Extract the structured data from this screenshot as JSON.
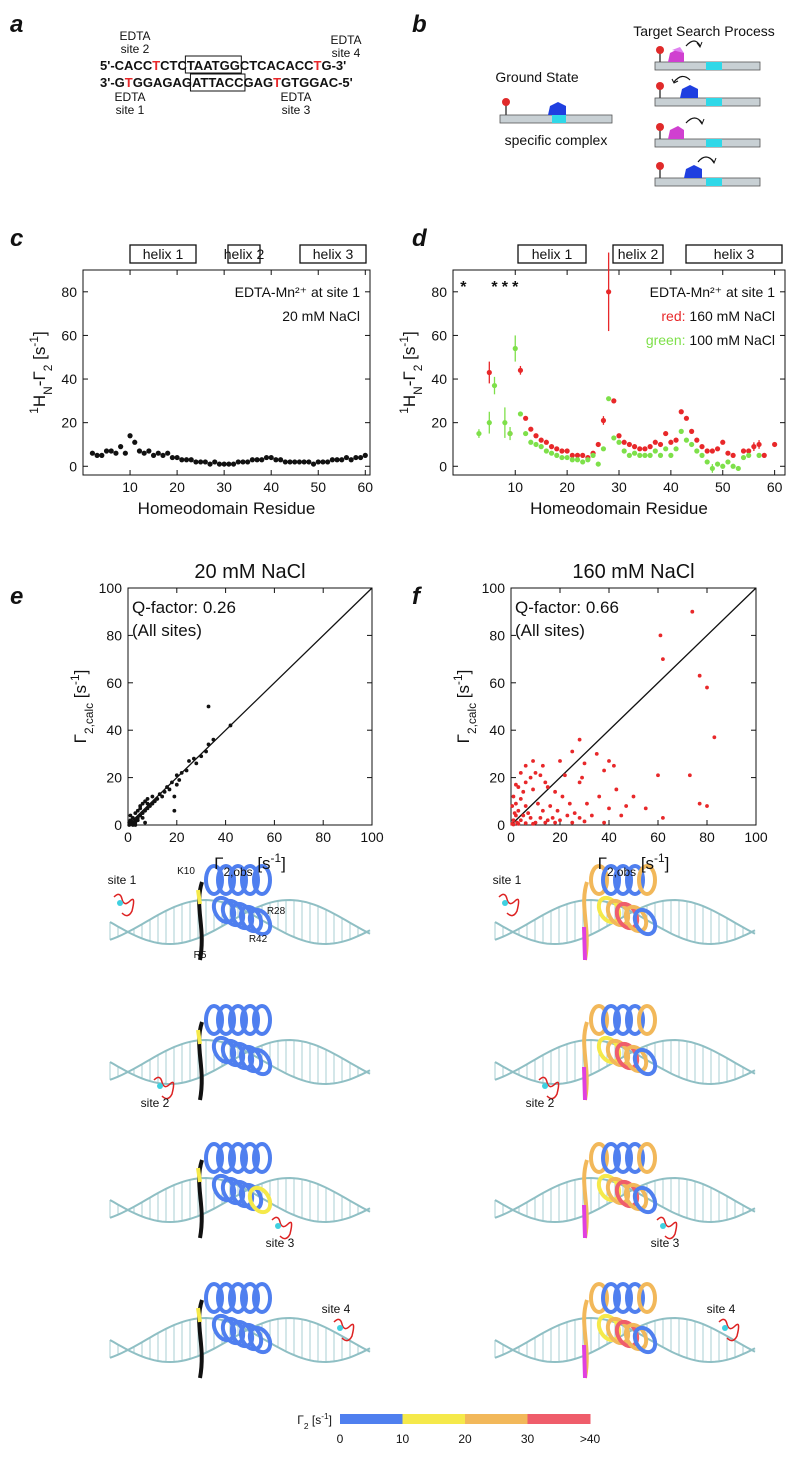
{
  "panel_labels": [
    "a",
    "b",
    "c",
    "d",
    "e",
    "f"
  ],
  "panel_a": {
    "site_2": [
      "EDTA",
      "site 2"
    ],
    "site_4": [
      "EDTA",
      "site 4"
    ],
    "site_1": [
      "EDTA",
      "site 1"
    ],
    "site_3": [
      "EDTA",
      "site 3"
    ],
    "top_strand": [
      "5'-CACC",
      "T",
      "CTC",
      "TAATGG",
      "CTCACACC",
      "T",
      "G-3'"
    ],
    "bottom_strand": [
      "3'-G",
      "T",
      "GGAGAG",
      "ATTACC",
      "GAG",
      "T",
      "GTGGAC-5'"
    ],
    "highlight_segments": [
      1,
      5
    ],
    "highlight_color": "#e8282a",
    "boxed_segment": 3
  },
  "panel_b": {
    "ground_state": "Ground State",
    "specific_complex": "specific complex",
    "target_search": "Target Search Process"
  },
  "chart_data": [
    {
      "type": "scatter",
      "helix_labels": [
        "helix 1",
        "helix 2",
        "helix 3"
      ],
      "annotations": [
        "EDTA-Mn²⁺ at site 1",
        "20 mM NaCl"
      ],
      "xlabel": [
        "Homeodomain Residue"
      ],
      "xlabel_format": [
        "normal"
      ],
      "ylabel": [
        "1",
        "H",
        "N",
        "-Γ",
        "2",
        " [s",
        "-1",
        "]"
      ],
      "ylabel_format": [
        "sup",
        "normal",
        "sub",
        "normal",
        "sub",
        "normal",
        "sup",
        "normal"
      ],
      "xlim": [
        0,
        61
      ],
      "ylim": [
        -4,
        90
      ],
      "xticks": [
        10,
        20,
        30,
        40,
        50,
        60
      ],
      "yticks": [
        0,
        20,
        40,
        60,
        80
      ],
      "series": [
        {
          "color": "#111111",
          "x": [
            2,
            3,
            4,
            5,
            6,
            7,
            8,
            9,
            10,
            11,
            12,
            13,
            14,
            15,
            16,
            17,
            18,
            19,
            20,
            21,
            22,
            23,
            24,
            25,
            26,
            27,
            28,
            29,
            30,
            31,
            32,
            33,
            34,
            35,
            36,
            37,
            38,
            39,
            40,
            41,
            42,
            43,
            44,
            45,
            46,
            47,
            48,
            49,
            50,
            51,
            52,
            53,
            54,
            55,
            56,
            57,
            58,
            59,
            60
          ],
          "values": [
            6,
            5,
            5,
            7,
            7,
            6,
            9,
            6,
            14,
            11,
            7,
            6,
            7,
            5,
            6,
            5,
            6,
            4,
            4,
            3,
            3,
            3,
            2,
            2,
            2,
            1,
            2,
            1,
            1,
            1,
            1,
            2,
            2,
            2,
            3,
            3,
            3,
            4,
            4,
            3,
            3,
            2,
            2,
            2,
            2,
            2,
            2,
            1,
            2,
            2,
            2,
            3,
            3,
            3,
            4,
            3,
            4,
            4,
            5
          ]
        }
      ]
    },
    {
      "type": "scatter",
      "helix_labels": [
        "helix 1",
        "helix 2",
        "helix 3"
      ],
      "annotations": [
        "EDTA-Mn²⁺ at site 1"
      ],
      "xlabel": [
        "Homeodomain Residue"
      ],
      "xlabel_format": [
        "normal"
      ],
      "ylabel": [
        "1",
        "H",
        "N",
        "-Γ",
        "2",
        " [s",
        "-1",
        "]"
      ],
      "ylabel_format": [
        "sup",
        "normal",
        "sub",
        "normal",
        "sub",
        "normal",
        "sup",
        "normal"
      ],
      "xlim": [
        -2,
        62
      ],
      "ylim": [
        -4,
        90
      ],
      "xticks": [
        10,
        20,
        30,
        40,
        50,
        60
      ],
      "yticks": [
        0,
        20,
        40,
        60,
        80
      ],
      "offscale": {
        "marker": "*",
        "color": "#e8282a",
        "x": [
          0,
          6,
          8,
          10
        ]
      },
      "series": [
        {
          "name": "160 mM NaCl",
          "legend_key": "red:",
          "color": "#e8282a",
          "x": [
            5,
            9,
            11,
            12,
            13,
            14,
            15,
            16,
            17,
            18,
            19,
            20,
            21,
            22,
            23,
            24,
            25,
            26,
            27,
            28,
            29,
            30,
            31,
            32,
            33,
            34,
            35,
            36,
            37,
            38,
            39,
            40,
            41,
            42,
            43,
            44,
            45,
            46,
            47,
            48,
            49,
            50,
            51,
            52,
            54,
            55,
            56,
            57,
            58,
            60
          ],
          "values": [
            43,
            15,
            44,
            22,
            17,
            14,
            12,
            11,
            9,
            8,
            7,
            7,
            5,
            5,
            5,
            4,
            6,
            10,
            21,
            80,
            30,
            14,
            11,
            10,
            9,
            8,
            8,
            9,
            11,
            10,
            15,
            11,
            12,
            25,
            22,
            16,
            12,
            9,
            7,
            7,
            8,
            11,
            6,
            5,
            7,
            7,
            9,
            10,
            5,
            10
          ],
          "errors": [
            5,
            1,
            2,
            1,
            1,
            1,
            1,
            1,
            1,
            1,
            1,
            1,
            1,
            1,
            1,
            1,
            1,
            1,
            2,
            18,
            1,
            1,
            1,
            1,
            1,
            1,
            1,
            1,
            1,
            1,
            1,
            1,
            1,
            1,
            1,
            1,
            1,
            1,
            1,
            1,
            1,
            1,
            1,
            1,
            1,
            1,
            2,
            2,
            1,
            1
          ]
        },
        {
          "name": "100 mM NaCl",
          "legend_key": "green:",
          "color": "#7ee04a",
          "x": [
            3,
            5,
            6,
            8,
            9,
            10,
            11,
            12,
            13,
            14,
            15,
            16,
            17,
            18,
            19,
            20,
            21,
            22,
            23,
            24,
            25,
            26,
            27,
            28,
            29,
            30,
            31,
            32,
            33,
            34,
            35,
            36,
            37,
            38,
            39,
            40,
            41,
            42,
            43,
            44,
            45,
            46,
            47,
            48,
            49,
            50,
            51,
            52,
            53,
            54,
            55,
            57
          ],
          "values": [
            15,
            20,
            37,
            20,
            15,
            54,
            24,
            15,
            11,
            10,
            9,
            7,
            6,
            5,
            4,
            4,
            3,
            3,
            2,
            3,
            5,
            1,
            8,
            31,
            13,
            11,
            7,
            5,
            6,
            5,
            5,
            5,
            7,
            5,
            8,
            5,
            8,
            16,
            12,
            10,
            7,
            5,
            2,
            -1,
            1,
            0,
            2,
            0,
            -1,
            4,
            5,
            5
          ],
          "errors": [
            2,
            5,
            4,
            7,
            3,
            6,
            1,
            1,
            1,
            1,
            1,
            1,
            1,
            1,
            1,
            1,
            1,
            1,
            1,
            1,
            1,
            1,
            1,
            1,
            1,
            1,
            1,
            1,
            1,
            1,
            1,
            1,
            1,
            1,
            1,
            1,
            1,
            1,
            1,
            1,
            1,
            1,
            1,
            2,
            1,
            1,
            1,
            1,
            1,
            1,
            1,
            1
          ]
        }
      ]
    },
    {
      "type": "scatter",
      "title": "20 mM NaCl",
      "annotations": [
        "Q-factor: 0.26",
        "(All sites)"
      ],
      "diagonal": true,
      "xlabel": [
        "Γ",
        "2,obs",
        " [s",
        "-1",
        "]"
      ],
      "xlabel_format": [
        "normal",
        "sub",
        "normal",
        "sup",
        "normal"
      ],
      "ylabel": [
        "Γ",
        "2,calc",
        " [s",
        "-1",
        "]"
      ],
      "ylabel_format": [
        "normal",
        "sub",
        "normal",
        "sup",
        "normal"
      ],
      "xlim": [
        0,
        100
      ],
      "ylim": [
        0,
        100
      ],
      "xticks": [
        0,
        20,
        40,
        60,
        80,
        100
      ],
      "yticks": [
        0,
        20,
        40,
        60,
        80,
        100
      ],
      "series": [
        {
          "color": "#111111",
          "x": [
            0.5,
            1,
            1.5,
            2,
            2,
            3,
            3,
            4,
            4,
            5,
            5,
            6,
            6,
            7,
            7,
            8,
            8,
            9,
            10,
            10,
            11,
            12,
            13,
            14,
            15,
            16,
            17,
            18,
            19,
            20,
            20,
            21,
            22,
            24,
            25,
            27,
            28,
            30,
            32,
            33,
            33,
            35,
            42,
            1,
            2,
            3,
            4,
            5,
            6,
            7,
            8,
            19,
            0.5,
            1,
            2,
            3
          ],
          "values": [
            1,
            2,
            0.5,
            3,
            1,
            2,
            5,
            3,
            6,
            4,
            8,
            5,
            9,
            6,
            10,
            7,
            11,
            8,
            9,
            12,
            10,
            11,
            13,
            12,
            14,
            16,
            15,
            18,
            6,
            17,
            21,
            19,
            22,
            23,
            27,
            28,
            26,
            29,
            31,
            34,
            50,
            36,
            42,
            4,
            0,
            1,
            2,
            7,
            3,
            1,
            9,
            12,
            0,
            0.5,
            0.3,
            0
          ]
        }
      ]
    },
    {
      "type": "scatter",
      "title": "160 mM NaCl",
      "annotations": [
        "Q-factor: 0.66",
        "(All sites)"
      ],
      "diagonal": true,
      "xlabel": [
        "Γ",
        "2,obs",
        " [s",
        "-1",
        "]"
      ],
      "xlabel_format": [
        "normal",
        "sub",
        "normal",
        "sup",
        "normal"
      ],
      "ylabel": [
        "Γ",
        "2,calc",
        " [s",
        "-1",
        "]"
      ],
      "ylabel_format": [
        "normal",
        "sub",
        "normal",
        "sup",
        "normal"
      ],
      "xlim": [
        0,
        100
      ],
      "ylim": [
        0,
        100
      ],
      "xticks": [
        0,
        20,
        40,
        60,
        80,
        100
      ],
      "yticks": [
        0,
        20,
        40,
        60,
        80,
        100
      ],
      "series": [
        {
          "color": "#e8282a",
          "x": [
            74,
            61,
            62,
            77,
            80,
            83,
            60,
            73,
            77,
            80,
            62,
            45,
            47,
            42,
            40,
            35,
            38,
            28,
            25,
            30,
            29,
            28,
            22,
            20,
            21,
            18,
            15,
            14,
            12,
            10,
            8,
            9,
            5,
            4,
            6,
            3,
            2,
            1,
            2,
            7,
            11,
            13,
            16,
            17,
            19,
            24,
            26,
            31,
            33,
            36,
            40,
            43,
            50,
            55,
            6,
            3,
            1,
            0.5,
            1.5,
            2.5,
            4,
            5,
            8,
            10,
            12,
            15,
            20,
            23,
            28,
            0.5,
            1,
            3,
            6,
            9,
            14,
            18,
            25,
            30,
            38,
            6,
            4,
            9,
            13,
            2
          ],
          "values": [
            90,
            80,
            70,
            63,
            58,
            37,
            21,
            21,
            9,
            8,
            3,
            4,
            8,
            25,
            27,
            30,
            23,
            36,
            31,
            26,
            20,
            18,
            21,
            27,
            12,
            14,
            16,
            18,
            21,
            22,
            20,
            15,
            14,
            11,
            8,
            6,
            4,
            2,
            9,
            5,
            9,
            6,
            8,
            3,
            6,
            9,
            5,
            9,
            4,
            12,
            7,
            15,
            12,
            7,
            18,
            16,
            12,
            8,
            5,
            1,
            2,
            4,
            3,
            1,
            3,
            2,
            2,
            4,
            3,
            0.5,
            0.2,
            0.5,
            0.8,
            0.5,
            1,
            1,
            1,
            1.5,
            1,
            25,
            22,
            27,
            25,
            17
          ]
        }
      ]
    }
  ],
  "structures": {
    "residue_labels": [
      "K10",
      "R28",
      "R5",
      "R42"
    ],
    "sites_left": [
      "site 1",
      "site 2",
      "site 3",
      "site 4"
    ],
    "sites_right": [
      "site 1",
      "site 2",
      "site 3",
      "site 4"
    ]
  },
  "colorbar": {
    "label": [
      "Γ",
      "2",
      " [s",
      "-1",
      "]"
    ],
    "label_format": [
      "normal",
      "sub",
      "normal",
      "sup",
      "normal"
    ],
    "lim": [
      0,
      40
    ],
    "ticks": [
      0,
      10,
      20,
      30,
      {
        "value": 40,
        "label": ">40"
      }
    ],
    "colors": [
      "#4f7fef",
      "#f5e94a",
      "#f2b85a",
      "#ef5d6b"
    ]
  }
}
